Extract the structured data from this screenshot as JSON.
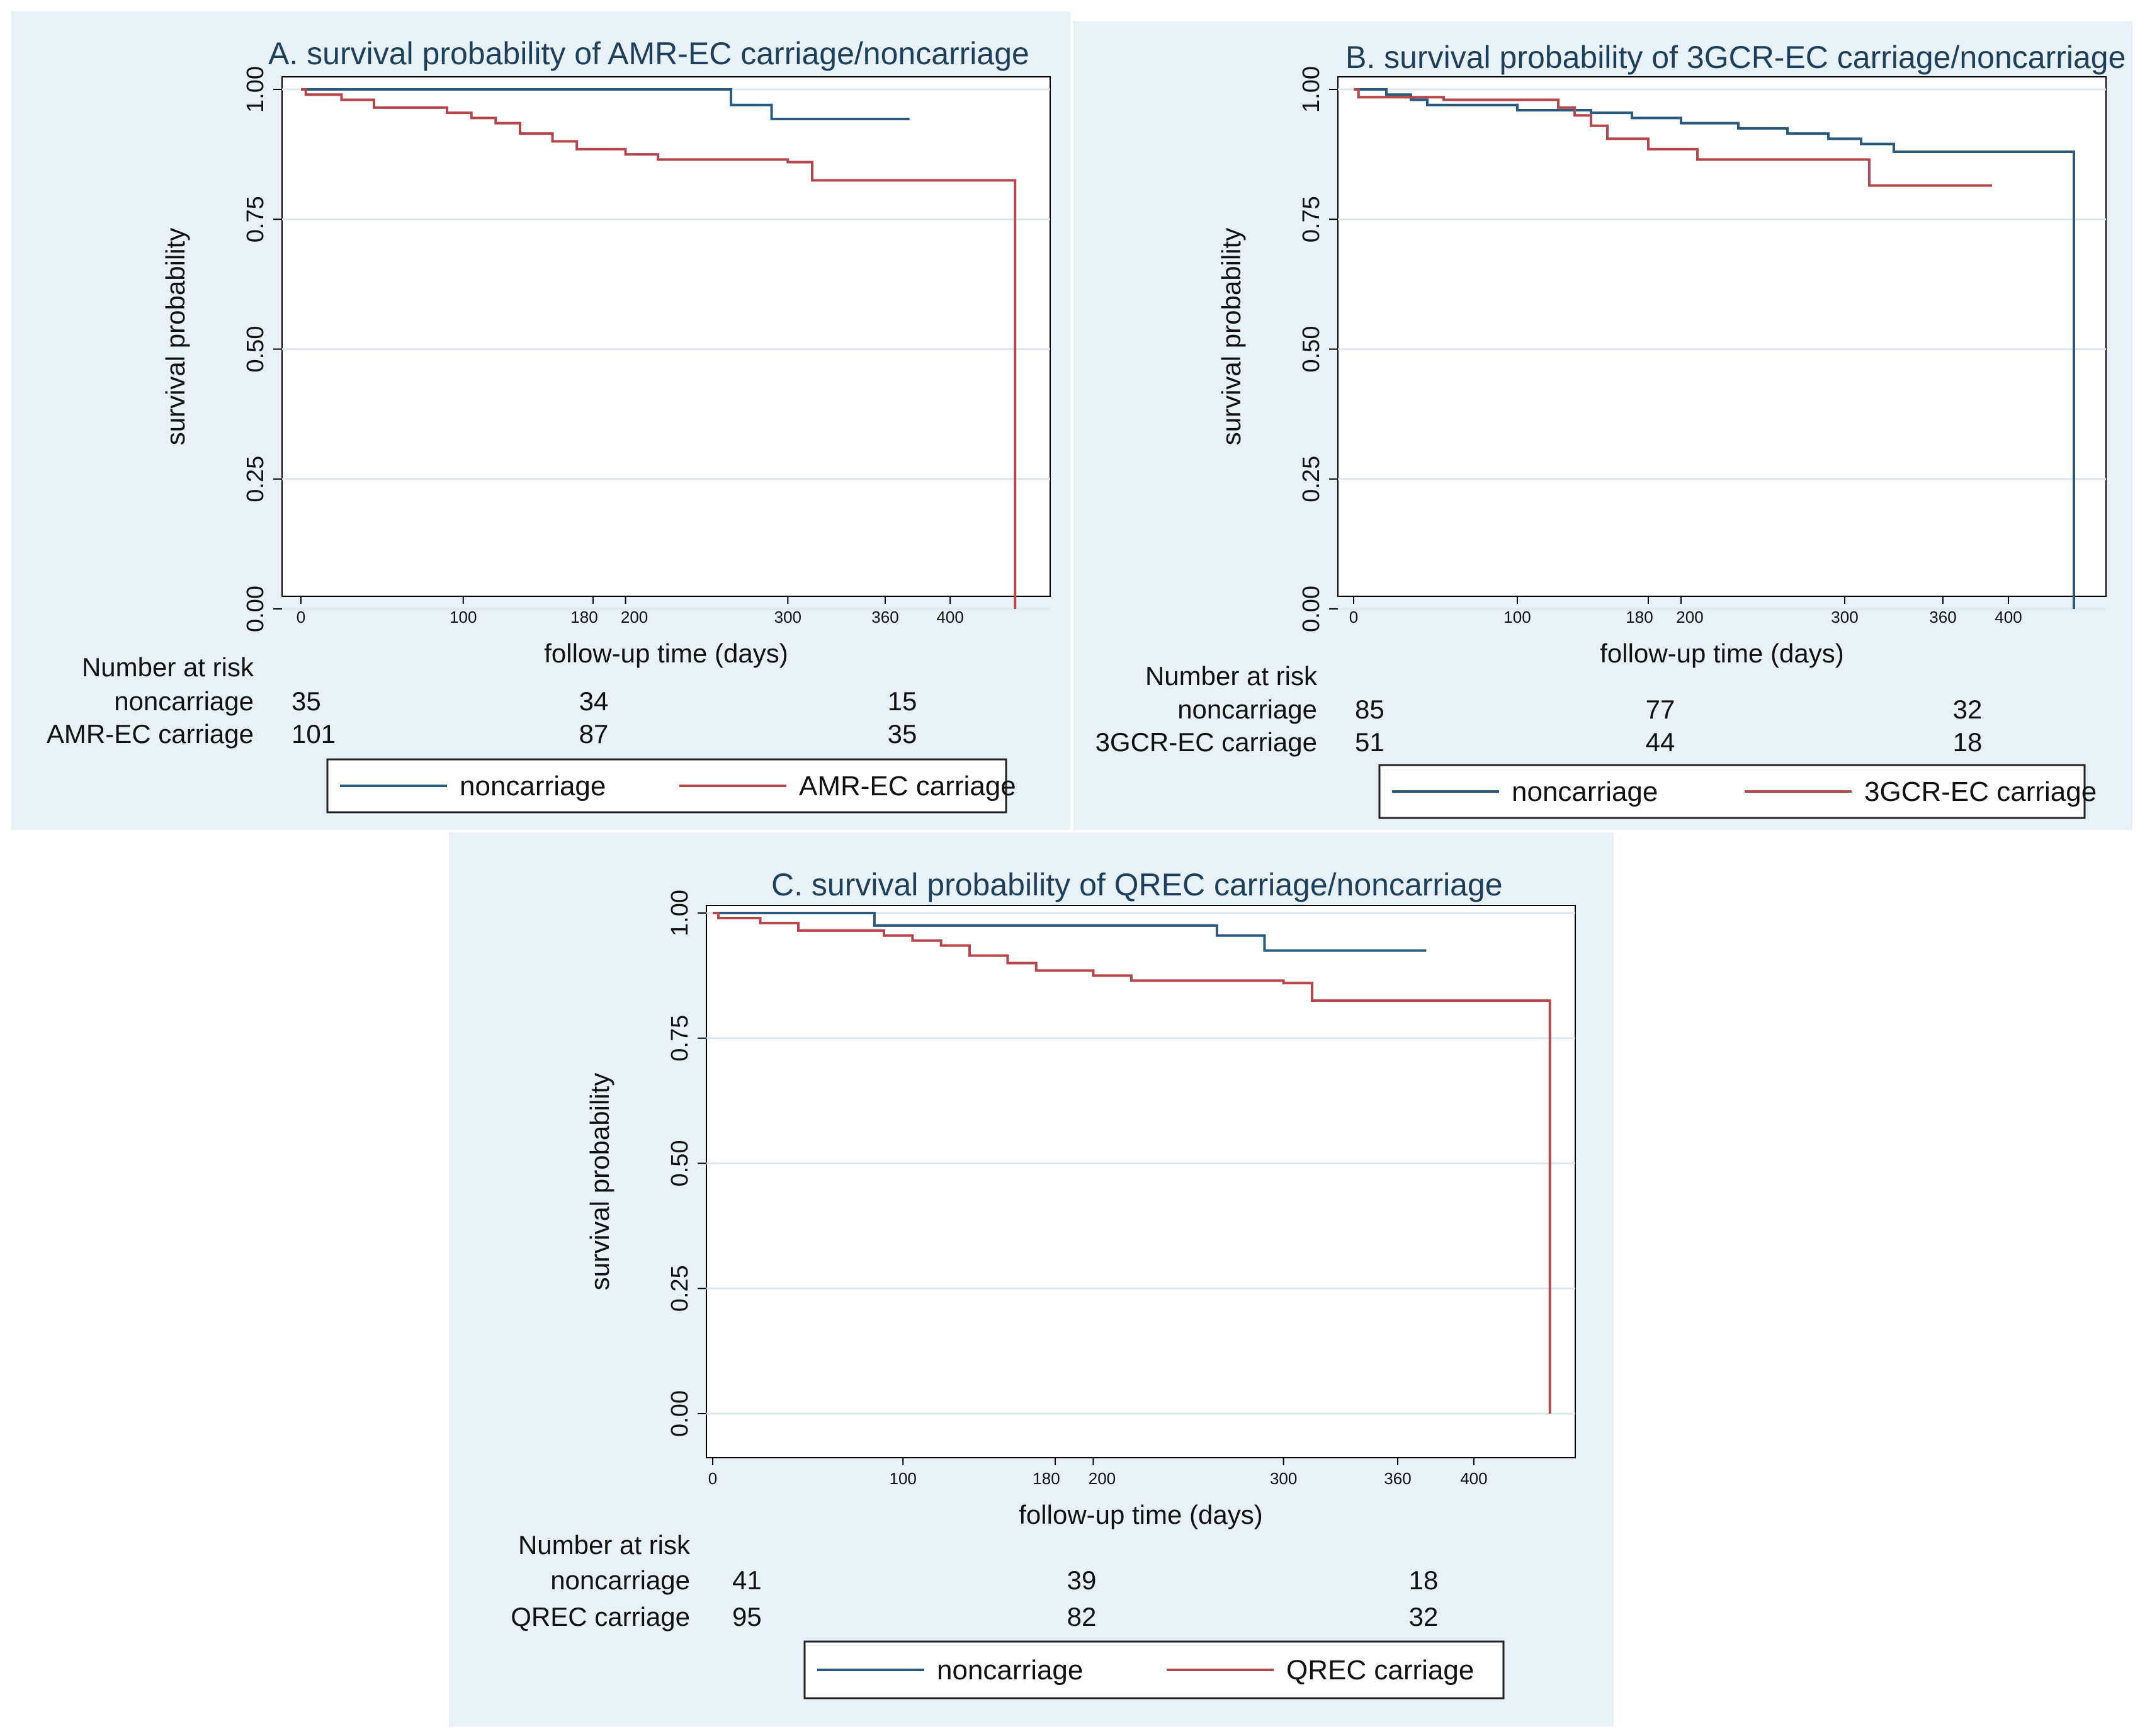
{
  "colors": {
    "noncarriage": "#2a5a7e",
    "carriage": "#b5474c",
    "title": "#1e3f5a",
    "panel_bg": "#e8f1f5",
    "grid": "#dde9ee"
  },
  "chart_data": [
    {
      "type": "line",
      "title": "A. survival probability of AMR-EC carriage/noncarriage",
      "xlabel": "follow-up time (days)",
      "ylabel": "survival probability",
      "xlim": [
        0,
        450
      ],
      "ylim": [
        0,
        1
      ],
      "xticks": [
        0,
        100,
        180,
        200,
        300,
        360,
        400
      ],
      "yticks": [
        "0.00",
        "0.25",
        "0.50",
        "0.75",
        "1.00"
      ],
      "series": [
        {
          "name": "noncarriage",
          "color": "#2a5a7e",
          "step": true,
          "points": [
            [
              0,
              1.0
            ],
            [
              265,
              1.0
            ],
            [
              265,
              0.97
            ],
            [
              290,
              0.97
            ],
            [
              290,
              0.943
            ],
            [
              375,
              0.943
            ]
          ]
        },
        {
          "name": "AMR-EC carriage",
          "color": "#b5474c",
          "step": true,
          "points": [
            [
              0,
              1.0
            ],
            [
              3,
              0.99
            ],
            [
              25,
              0.98
            ],
            [
              45,
              0.965
            ],
            [
              90,
              0.955
            ],
            [
              105,
              0.945
            ],
            [
              120,
              0.935
            ],
            [
              135,
              0.915
            ],
            [
              155,
              0.9
            ],
            [
              170,
              0.885
            ],
            [
              200,
              0.875
            ],
            [
              220,
              0.865
            ],
            [
              300,
              0.86
            ],
            [
              315,
              0.825
            ],
            [
              440,
              0.825
            ],
            [
              440,
              0.0
            ]
          ]
        }
      ],
      "risk_table": {
        "heading": "Number at risk",
        "times": [
          0,
          180,
          360
        ],
        "rows": [
          {
            "label": "noncarriage",
            "values": [
              "35",
              "34",
              "15"
            ]
          },
          {
            "label": "AMR-EC carriage",
            "values": [
              "101",
              "87",
              "35"
            ]
          }
        ]
      }
    },
    {
      "type": "line",
      "title": "B. survival probability of 3GCR-EC carriage/noncarriage",
      "xlabel": "follow-up time (days)",
      "ylabel": "survival probability",
      "xlim": [
        0,
        450
      ],
      "ylim": [
        0,
        1
      ],
      "xticks": [
        0,
        100,
        180,
        200,
        300,
        360,
        400
      ],
      "yticks": [
        "0.00",
        "0.25",
        "0.50",
        "0.75",
        "1.00"
      ],
      "series": [
        {
          "name": "noncarriage",
          "color": "#2a5a7e",
          "step": true,
          "points": [
            [
              0,
              1.0
            ],
            [
              10,
              1.0
            ],
            [
              20,
              0.99
            ],
            [
              35,
              0.98
            ],
            [
              45,
              0.97
            ],
            [
              100,
              0.96
            ],
            [
              145,
              0.955
            ],
            [
              170,
              0.945
            ],
            [
              200,
              0.935
            ],
            [
              235,
              0.925
            ],
            [
              265,
              0.915
            ],
            [
              290,
              0.905
            ],
            [
              310,
              0.895
            ],
            [
              330,
              0.88
            ],
            [
              440,
              0.88
            ],
            [
              440,
              0.0
            ]
          ]
        },
        {
          "name": "3GCR-EC carriage",
          "color": "#b5474c",
          "step": true,
          "points": [
            [
              0,
              1.0
            ],
            [
              3,
              0.985
            ],
            [
              30,
              0.985
            ],
            [
              55,
              0.98
            ],
            [
              110,
              0.98
            ],
            [
              125,
              0.965
            ],
            [
              135,
              0.95
            ],
            [
              145,
              0.93
            ],
            [
              155,
              0.905
            ],
            [
              180,
              0.885
            ],
            [
              210,
              0.865
            ],
            [
              240,
              0.865
            ],
            [
              315,
              0.865
            ],
            [
              315,
              0.815
            ],
            [
              390,
              0.815
            ]
          ]
        }
      ],
      "risk_table": {
        "heading": "Number at risk",
        "times": [
          0,
          180,
          360
        ],
        "rows": [
          {
            "label": "noncarriage",
            "values": [
              "85",
              "77",
              "32"
            ]
          },
          {
            "label": "3GCR-EC carriage",
            "values": [
              "51",
              "44",
              "18"
            ]
          }
        ]
      }
    },
    {
      "type": "line",
      "title": "C. survival probability of QREC carriage/noncarriage",
      "xlabel": "follow-up time (days)",
      "ylabel": "survival probability",
      "xlim": [
        0,
        450
      ],
      "ylim": [
        0,
        1
      ],
      "xticks": [
        0,
        100,
        180,
        200,
        300,
        360,
        400
      ],
      "yticks": [
        "0.00",
        "0.25",
        "0.50",
        "0.75",
        "1.00"
      ],
      "series": [
        {
          "name": "noncarriage",
          "color": "#2a5a7e",
          "step": true,
          "points": [
            [
              0,
              1.0
            ],
            [
              85,
              1.0
            ],
            [
              85,
              0.975
            ],
            [
              265,
              0.975
            ],
            [
              265,
              0.955
            ],
            [
              290,
              0.955
            ],
            [
              290,
              0.925
            ],
            [
              375,
              0.925
            ]
          ]
        },
        {
          "name": "QREC carriage",
          "color": "#b5474c",
          "step": true,
          "points": [
            [
              0,
              1.0
            ],
            [
              3,
              0.99
            ],
            [
              25,
              0.98
            ],
            [
              45,
              0.965
            ],
            [
              90,
              0.955
            ],
            [
              105,
              0.945
            ],
            [
              120,
              0.935
            ],
            [
              135,
              0.915
            ],
            [
              155,
              0.9
            ],
            [
              170,
              0.885
            ],
            [
              200,
              0.875
            ],
            [
              220,
              0.865
            ],
            [
              300,
              0.86
            ],
            [
              315,
              0.825
            ],
            [
              440,
              0.825
            ],
            [
              440,
              0.0
            ]
          ]
        }
      ],
      "risk_table": {
        "heading": "Number at risk",
        "times": [
          0,
          180,
          360
        ],
        "rows": [
          {
            "label": "noncarriage",
            "values": [
              "41",
              "39",
              "18"
            ]
          },
          {
            "label": "QREC carriage",
            "values": [
              "95",
              "82",
              "32"
            ]
          }
        ]
      }
    }
  ]
}
